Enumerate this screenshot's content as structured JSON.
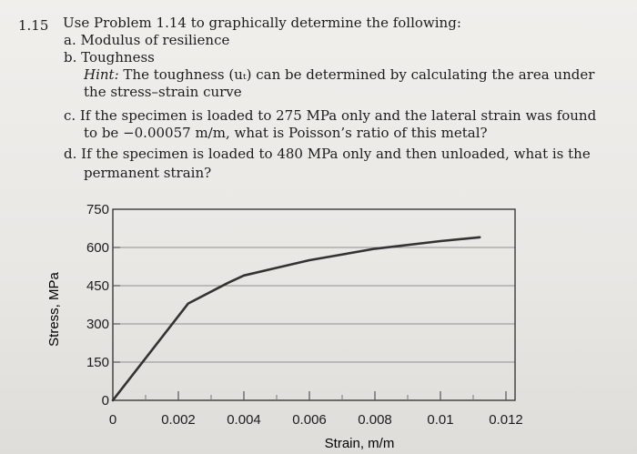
{
  "problem": {
    "number": "1.15",
    "stem": "Use Problem 1.14 to graphically determine the following:",
    "items": {
      "a": "a. Modulus of resilience",
      "b": "b. Toughness",
      "hint_label": "Hint:",
      "hint_line1": "The toughness (uₜ) can be determined by calculating the area under",
      "hint_line2": "the stress–strain curve",
      "c_line1": "c. If the specimen is loaded to 275 MPa only and the lateral strain was found",
      "c_line2": "to be −0.00057 m/m, what is Poisson’s ratio of this metal?",
      "d_line1": "d. If the specimen is loaded to 480 MPa only and then unloaded, what is the",
      "d_line2": "permanent strain?"
    }
  },
  "chart_data": {
    "type": "line",
    "xlabel": "Strain, m/m",
    "ylabel": "Stress, MPa",
    "xlim": [
      0,
      0.012
    ],
    "ylim": [
      0,
      750
    ],
    "x_ticks": [
      "0",
      "0.002",
      "0.004",
      "0.006",
      "0.008",
      "0.01",
      "0.012"
    ],
    "y_ticks": [
      "0",
      "150",
      "300",
      "450",
      "600",
      "750"
    ],
    "grid": "horizontal",
    "series": [
      {
        "x": [
          0,
          0.0023,
          0.0035,
          0.004,
          0.005,
          0.006,
          0.008,
          0.01,
          0.0112
        ],
        "y": [
          0,
          380,
          460,
          490,
          520,
          550,
          595,
          625,
          640
        ]
      }
    ],
    "line_color": "#333333"
  }
}
